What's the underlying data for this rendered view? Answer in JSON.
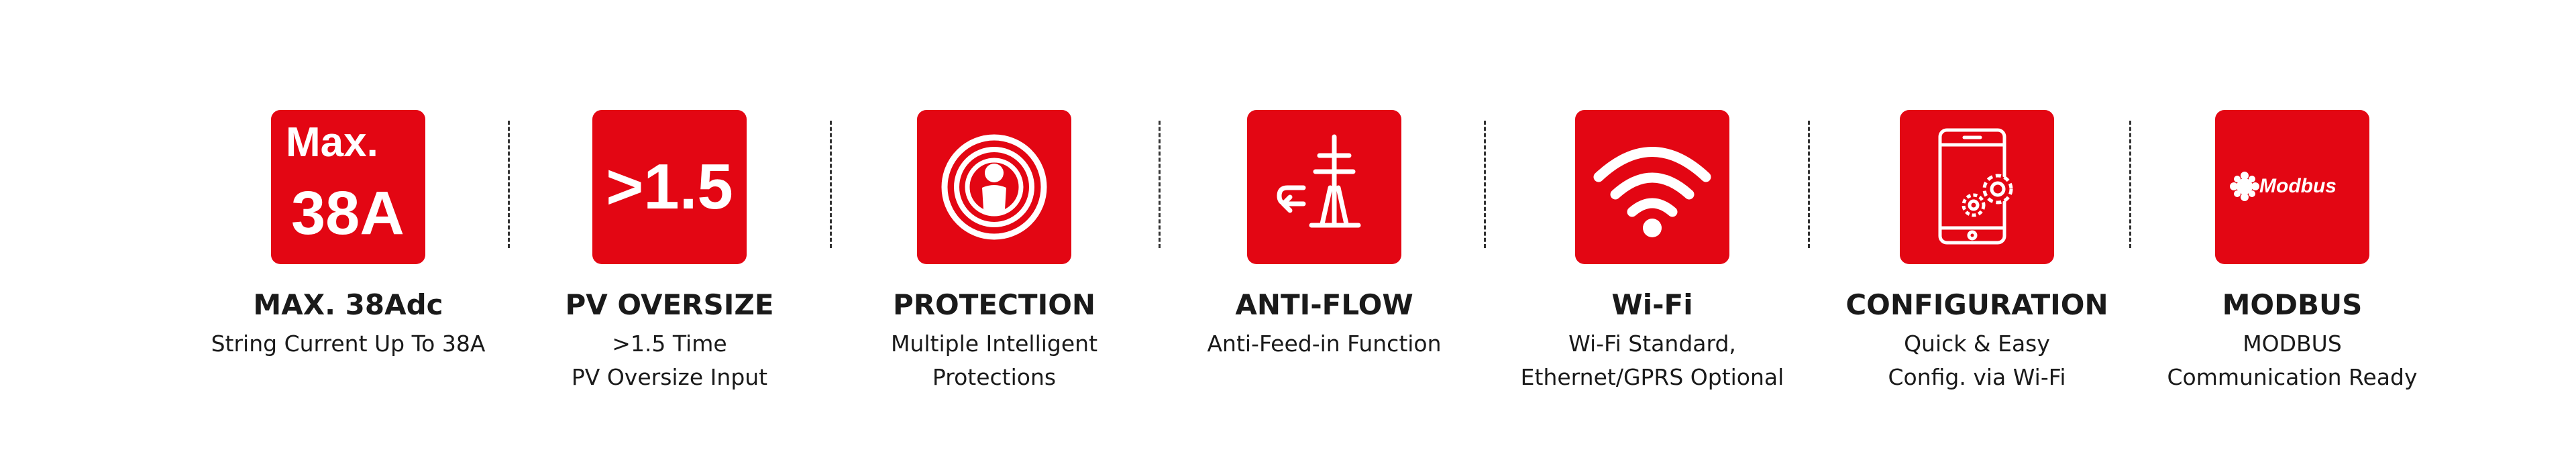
{
  "colors": {
    "accent": "#e30613",
    "text": "#1a1a1a",
    "icon": "#ffffff",
    "divider": "#333333"
  },
  "features": [
    {
      "icon": "max-current-badge",
      "icon_text": [
        "Max.",
        "38A"
      ],
      "title": "MAX. 38Adc",
      "desc": [
        "String Current Up To 38A"
      ]
    },
    {
      "icon": "oversize-badge",
      "icon_text": [
        ">1.5"
      ],
      "title": "PV OVERSIZE",
      "desc": [
        ">1.5 Time",
        "PV Oversize Input"
      ]
    },
    {
      "icon": "protection-icon",
      "title": "PROTECTION",
      "desc": [
        "Multiple Intelligent",
        "Protections"
      ]
    },
    {
      "icon": "anti-flow-icon",
      "title": "ANTI-FLOW",
      "desc": [
        "Anti-Feed-in Function"
      ]
    },
    {
      "icon": "wifi-icon",
      "title": "Wi-Fi",
      "desc": [
        "Wi-Fi Standard,",
        "Ethernet/GPRS Optional"
      ]
    },
    {
      "icon": "phone-gears-icon",
      "title": "CONFIGURATION",
      "desc": [
        "Quick & Easy",
        "Config. via Wi-Fi"
      ]
    },
    {
      "icon": "modbus-icon",
      "icon_text": [
        "Modbus"
      ],
      "title": "MODBUS",
      "desc": [
        "MODBUS",
        "Communication Ready"
      ]
    }
  ]
}
